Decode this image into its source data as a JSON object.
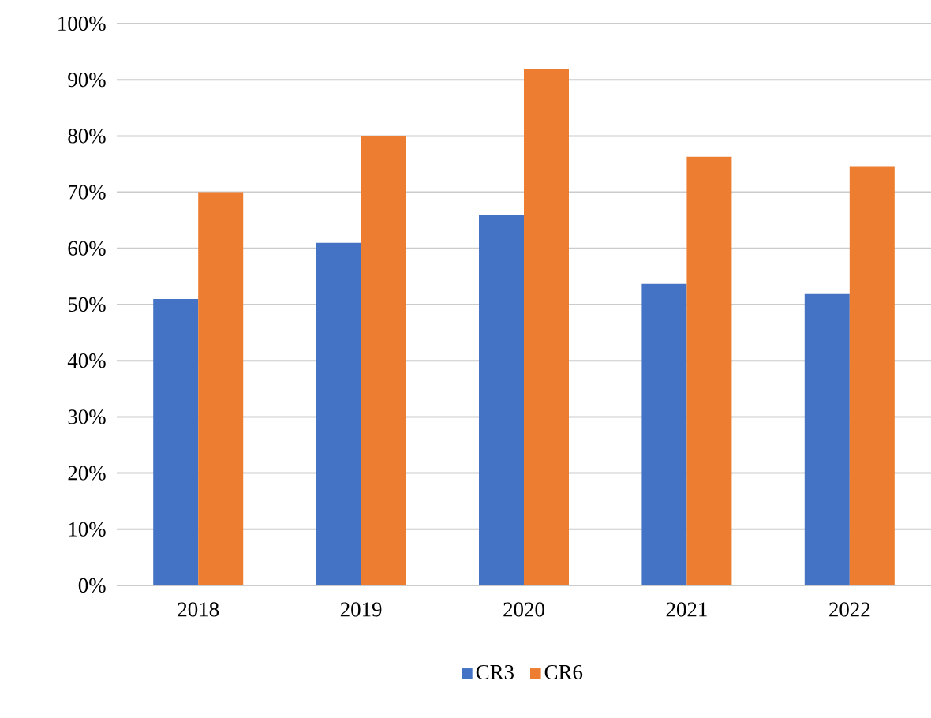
{
  "chart_data": {
    "type": "bar",
    "categories": [
      "2018",
      "2019",
      "2020",
      "2021",
      "2022"
    ],
    "series": [
      {
        "name": "CR3",
        "color": "#4472c4",
        "values": [
          51,
          61,
          66,
          53.7,
          52
        ]
      },
      {
        "name": "CR6",
        "color": "#ed7d31",
        "values": [
          70,
          80,
          92,
          76.3,
          74.5
        ]
      }
    ],
    "ylim": [
      0,
      100
    ],
    "yticks": [
      {
        "value": 0,
        "label": "0%"
      },
      {
        "value": 10,
        "label": "10%"
      },
      {
        "value": 20,
        "label": "20%"
      },
      {
        "value": 30,
        "label": "30%"
      },
      {
        "value": 40,
        "label": "40%"
      },
      {
        "value": 50,
        "label": "50%"
      },
      {
        "value": 60,
        "label": "60%"
      },
      {
        "value": 70,
        "label": "70%"
      },
      {
        "value": 80,
        "label": "80%"
      },
      {
        "value": 90,
        "label": "90%"
      },
      {
        "value": 100,
        "label": "100%"
      }
    ],
    "grid": "y",
    "legend": "bottom"
  }
}
